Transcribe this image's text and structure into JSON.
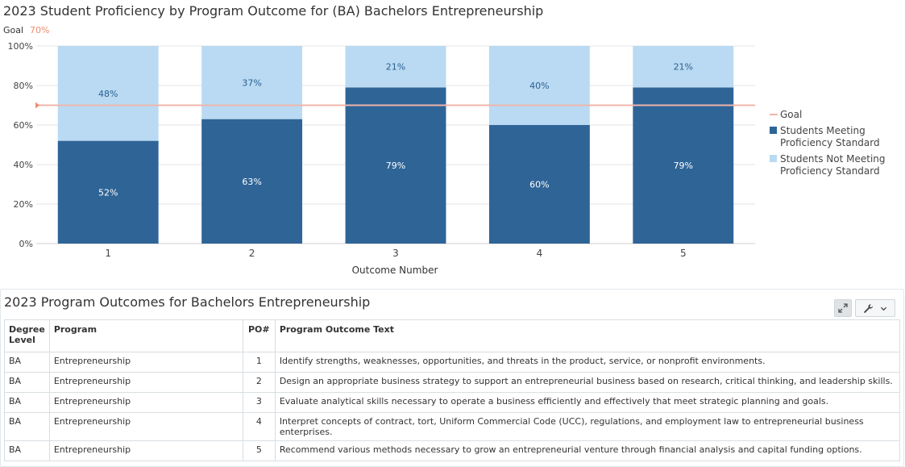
{
  "chart_data": {
    "type": "bar",
    "stacked": true,
    "title": "2023 Student Proficiency by Program Outcome for (BA) Bachelors Entrepreneurship",
    "goal_label": "Goal",
    "goal_value_label": "70%",
    "goal": 70,
    "xlabel": "Outcome Number",
    "ylabel": "",
    "ylim": [
      0,
      100
    ],
    "yticks": [
      "0%",
      "20%",
      "40%",
      "60%",
      "80%",
      "100%"
    ],
    "categories": [
      "1",
      "2",
      "3",
      "4",
      "5"
    ],
    "series": [
      {
        "name": "Students Meeting Proficiency Standard",
        "values": [
          52,
          63,
          79,
          60,
          79
        ],
        "labels": [
          "52%",
          "63%",
          "79%",
          "60%",
          "79%"
        ],
        "color": "#2f6497"
      },
      {
        "name": "Students Not Meeting Proficiency Standard",
        "values": [
          48,
          37,
          21,
          40,
          21
        ],
        "labels": [
          "48%",
          "37%",
          "21%",
          "40%",
          "21%"
        ],
        "color": "#b9daf2"
      }
    ],
    "legend": {
      "placement": "right",
      "entries": [
        {
          "lines": [
            "Goal"
          ],
          "color": "#f0b5ab",
          "kind": "line"
        },
        {
          "lines": [
            "Students Meeting",
            "Proficiency Standard"
          ],
          "color": "#2f6497",
          "kind": "box"
        },
        {
          "lines": [
            "Students Not Meeting",
            "Proficiency Standard"
          ],
          "color": "#b9daf2",
          "kind": "box"
        }
      ]
    },
    "goal_color": "#f0b5ab",
    "goal_text_color": "#f08c70",
    "grid": true
  },
  "table_panel": {
    "title": "2023 Program Outcomes for Bachelors Entrepreneurship",
    "expand_icon": "expand-icon",
    "wrench_icon": "wrench-icon",
    "dropdown_icon": "chevron-down-icon",
    "columns": [
      "Degree Level",
      "Program",
      "PO#",
      "Program Outcome Text"
    ],
    "rows": [
      {
        "degree": "BA",
        "program": "Entrepreneurship",
        "po": "1",
        "text": "Identify strengths, weaknesses, opportunities, and threats in the product, service, or nonprofit environments."
      },
      {
        "degree": "BA",
        "program": "Entrepreneurship",
        "po": "2",
        "text": "Design an appropriate business strategy to support an entrepreneurial business based on research, critical thinking, and leadership skills."
      },
      {
        "degree": "BA",
        "program": "Entrepreneurship",
        "po": "3",
        "text": "Evaluate analytical skills necessary to operate a business efficiently and effectively that meet strategic planning and goals."
      },
      {
        "degree": "BA",
        "program": "Entrepreneurship",
        "po": "4",
        "text": "Interpret concepts of contract, tort, Uniform Commercial Code (UCC), regulations, and employment law to entrepreneurial business enterprises."
      },
      {
        "degree": "BA",
        "program": "Entrepreneurship",
        "po": "5",
        "text": "Recommend various methods necessary to grow an entrepreneurial venture through financial analysis and capital funding options."
      }
    ]
  }
}
